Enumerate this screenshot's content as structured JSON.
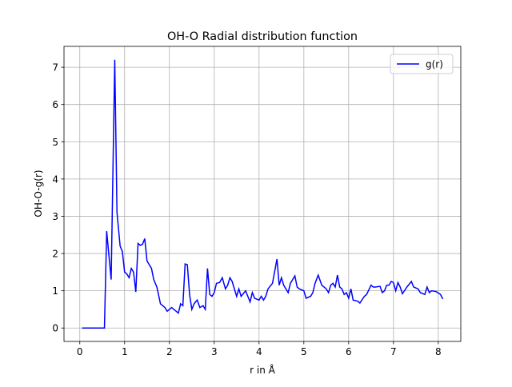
{
  "chart_data": {
    "type": "line",
    "title": "OH-O Radial distribution function",
    "x_label": "r in Å",
    "y_label": "OH-O-g(r)",
    "x": [
      0.05,
      0.55,
      0.6,
      0.7,
      0.78,
      0.83,
      0.9,
      0.95,
      1.0,
      1.05,
      1.1,
      1.15,
      1.2,
      1.25,
      1.3,
      1.35,
      1.4,
      1.45,
      1.5,
      1.6,
      1.65,
      1.72,
      1.8,
      1.9,
      1.95,
      2.0,
      2.05,
      2.1,
      2.2,
      2.25,
      2.3,
      2.35,
      2.4,
      2.45,
      2.5,
      2.55,
      2.62,
      2.68,
      2.75,
      2.8,
      2.85,
      2.9,
      2.95,
      3.0,
      3.05,
      3.12,
      3.18,
      3.25,
      3.3,
      3.35,
      3.4,
      3.5,
      3.55,
      3.6,
      3.7,
      3.75,
      3.8,
      3.85,
      3.9,
      4.0,
      4.05,
      4.1,
      4.15,
      4.2,
      4.3,
      4.4,
      4.45,
      4.5,
      4.55,
      4.65,
      4.7,
      4.8,
      4.85,
      4.9,
      5.0,
      5.05,
      5.15,
      5.2,
      5.25,
      5.32,
      5.4,
      5.45,
      5.5,
      5.55,
      5.6,
      5.65,
      5.7,
      5.75,
      5.8,
      5.85,
      5.9,
      5.95,
      6.0,
      6.05,
      6.1,
      6.2,
      6.25,
      6.35,
      6.4,
      6.5,
      6.55,
      6.6,
      6.7,
      6.75,
      6.8,
      6.85,
      6.9,
      6.95,
      7.0,
      7.05,
      7.1,
      7.15,
      7.2,
      7.3,
      7.4,
      7.45,
      7.55,
      7.6,
      7.7,
      7.75,
      7.8,
      7.85,
      7.95,
      8.05,
      8.1
    ],
    "series": [
      {
        "name": "g(r)",
        "color": "#0000ff",
        "values": [
          0,
          0,
          2.6,
          1.3,
          7.2,
          3.1,
          2.2,
          2.05,
          1.5,
          1.45,
          1.35,
          1.6,
          1.5,
          0.97,
          2.27,
          2.22,
          2.25,
          2.4,
          1.8,
          1.6,
          1.3,
          1.1,
          0.65,
          0.55,
          0.45,
          0.5,
          0.55,
          0.5,
          0.4,
          0.65,
          0.6,
          1.72,
          1.7,
          0.9,
          0.5,
          0.65,
          0.75,
          0.55,
          0.6,
          0.5,
          1.6,
          0.9,
          0.85,
          0.95,
          1.2,
          1.22,
          1.35,
          1.05,
          1.15,
          1.35,
          1.25,
          0.85,
          1.05,
          0.85,
          1.0,
          0.85,
          0.7,
          0.95,
          0.8,
          0.75,
          0.85,
          0.75,
          0.85,
          1.05,
          1.2,
          1.85,
          1.15,
          1.35,
          1.15,
          0.95,
          1.2,
          1.4,
          1.1,
          1.05,
          1.0,
          0.8,
          0.85,
          0.95,
          1.2,
          1.42,
          1.15,
          1.1,
          1.05,
          0.95,
          1.15,
          1.2,
          1.1,
          1.42,
          1.1,
          1.05,
          0.9,
          0.95,
          0.8,
          1.05,
          0.75,
          0.72,
          0.67,
          0.85,
          0.9,
          1.15,
          1.1,
          1.1,
          1.12,
          0.95,
          1.0,
          1.15,
          1.15,
          1.25,
          1.22,
          1.0,
          1.22,
          1.1,
          0.92,
          1.1,
          1.25,
          1.1,
          1.05,
          0.95,
          0.9,
          1.1,
          0.95,
          1.0,
          0.98,
          0.9,
          0.78
        ]
      }
    ],
    "xlim": [
      -0.3525,
      8.5025
    ],
    "ylim": [
      -0.36,
      7.56
    ],
    "xticks": [
      0,
      1,
      2,
      3,
      4,
      5,
      6,
      7,
      8
    ],
    "yticks": [
      0,
      1,
      2,
      3,
      4,
      5,
      6,
      7
    ],
    "grid": true,
    "legend": "upper right"
  }
}
